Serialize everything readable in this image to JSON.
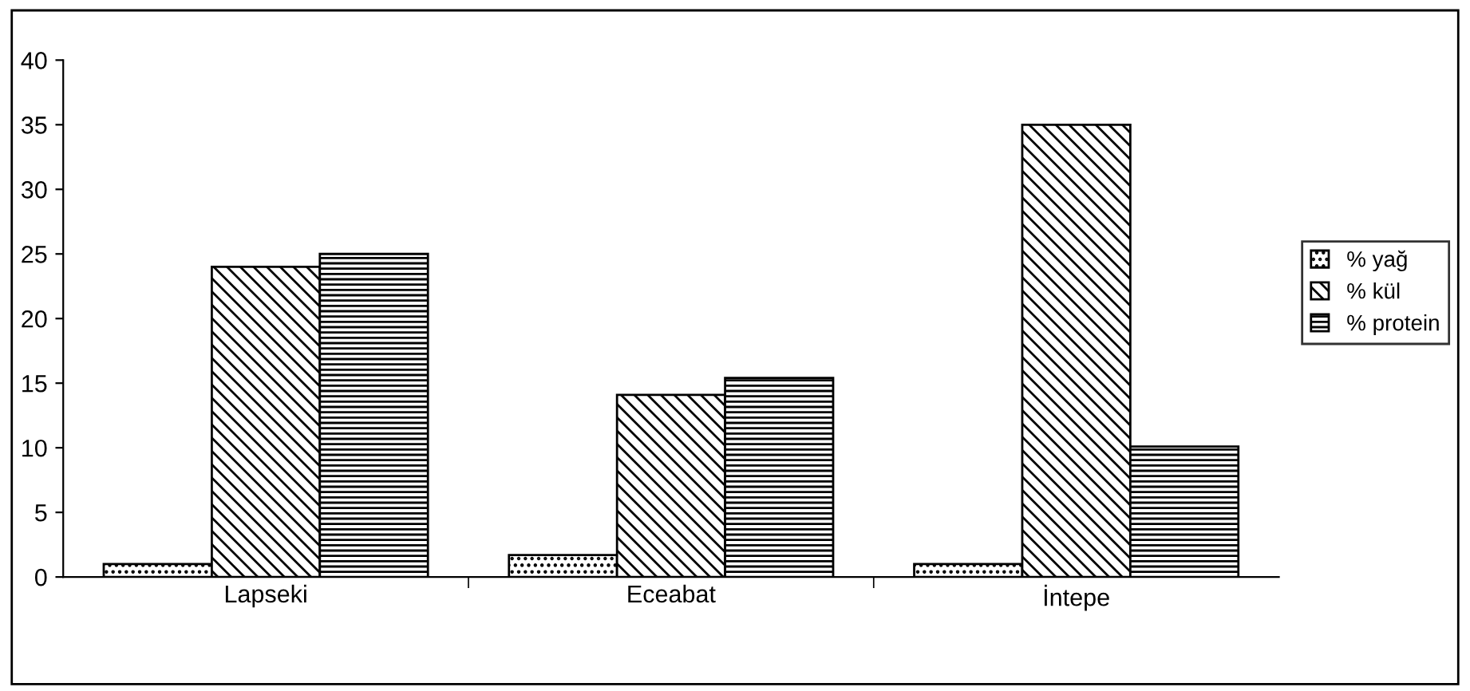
{
  "chart_data": {
    "type": "bar",
    "categories": [
      "Lapseki",
      "Eceabat",
      "İntepe"
    ],
    "series": [
      {
        "name": "% yağ",
        "color": "#000000",
        "values": [
          1,
          1.7,
          1
        ]
      },
      {
        "name": "% kül",
        "color": "#000000",
        "values": [
          24,
          14.1,
          35
        ]
      },
      {
        "name": "% protein",
        "color": "#000000",
        "values": [
          25,
          15.4,
          10.1
        ]
      }
    ],
    "ylim": [
      0,
      40
    ],
    "yticks": [
      0,
      5,
      10,
      15,
      20,
      25,
      30,
      35,
      40
    ],
    "grid": false,
    "legend": "right"
  }
}
